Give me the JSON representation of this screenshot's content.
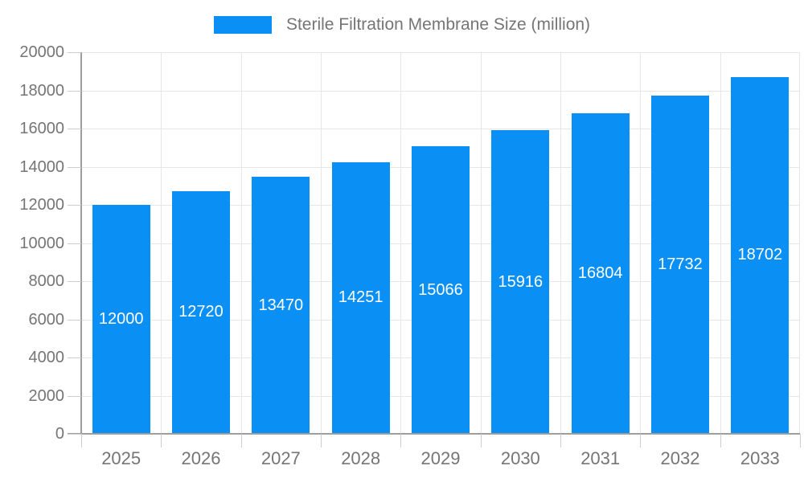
{
  "legend": {
    "label": "Sterile Filtration Membrane Size (million)"
  },
  "colors": {
    "bar": "#0a90f5",
    "grid": "#e6e6e6",
    "axis": "#9e9e9e",
    "tick": "#cccccc",
    "text": "#757575",
    "value_text": "#ffffff",
    "background": "#ffffff"
  },
  "chart_data": {
    "type": "bar",
    "title": "Sterile Filtration Membrane Size (million)",
    "categories": [
      "2025",
      "2026",
      "2027",
      "2028",
      "2029",
      "2030",
      "2031",
      "2032",
      "2033"
    ],
    "values": [
      12000,
      12720,
      13470,
      14251,
      15066,
      15916,
      16804,
      17732,
      18702
    ],
    "series": [
      {
        "name": "Sterile Filtration Membrane Size (million)",
        "values": [
          12000,
          12720,
          13470,
          14251,
          15066,
          15916,
          16804,
          17732,
          18702
        ]
      }
    ],
    "xlabel": "",
    "ylabel": "",
    "ylim": [
      0,
      20000
    ],
    "ytick_step": 2000,
    "ytick_labels": [
      "0",
      "2000",
      "4000",
      "6000",
      "8000",
      "10000",
      "12000",
      "14000",
      "16000",
      "18000",
      "20000"
    ],
    "grid": true,
    "legend_position": "top-center",
    "value_labels": "inside-center-white"
  }
}
